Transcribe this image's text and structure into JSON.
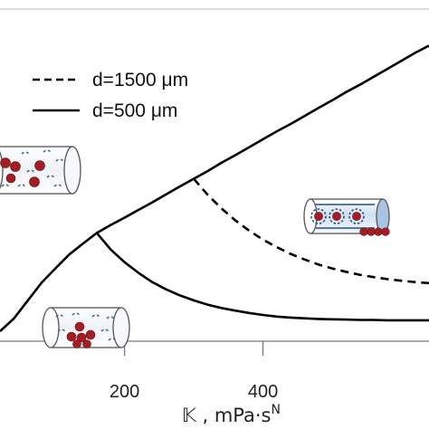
{
  "chart_data": {
    "type": "line",
    "xlabel": "𝕂 , mPa·s",
    "xlabel_superscript": "N",
    "x_ticks": [
      200,
      400
    ],
    "xlim": [
      20,
      640
    ],
    "ylim": [
      0,
      1
    ],
    "grid": false,
    "legend": {
      "placement": "top-left",
      "entries": [
        {
          "label": "d=1500 μm",
          "style": "dashed"
        },
        {
          "label": "d=500 μm",
          "style": "solid"
        }
      ]
    },
    "series": [
      {
        "name": "d=500 μm",
        "style": "solid",
        "segment": "upper-branch",
        "x": [
          20,
          40,
          60,
          80,
          100,
          120,
          140,
          160,
          180,
          200,
          220,
          240,
          260,
          280,
          300,
          320,
          340,
          360,
          380,
          400,
          420,
          440,
          460,
          480,
          500,
          520,
          540,
          560,
          580,
          600,
          620,
          640
        ],
        "y": [
          0.03,
          0.068,
          0.122,
          0.176,
          0.219,
          0.261,
          0.294,
          0.326,
          0.35,
          0.372,
          0.395,
          0.418,
          0.442,
          0.466,
          0.489,
          0.512,
          0.537,
          0.56,
          0.584,
          0.608,
          0.632,
          0.654,
          0.678,
          0.702,
          0.725,
          0.75,
          0.772,
          0.796,
          0.82,
          0.844,
          0.868,
          0.89
        ]
      },
      {
        "name": "d=500 μm",
        "style": "solid",
        "segment": "lower-branch",
        "x": [
          160,
          180,
          200,
          220,
          240,
          260,
          280,
          300,
          320,
          340,
          360,
          380,
          400,
          420,
          440,
          460,
          480,
          500,
          520,
          540,
          560,
          580,
          600,
          620,
          640
        ],
        "y": [
          0.326,
          0.276,
          0.238,
          0.206,
          0.178,
          0.156,
          0.138,
          0.123,
          0.11,
          0.1,
          0.092,
          0.085,
          0.079,
          0.074,
          0.071,
          0.069,
          0.067,
          0.066,
          0.065,
          0.064,
          0.064,
          0.063,
          0.063,
          0.063,
          0.063
        ]
      },
      {
        "name": "d=1500 μm",
        "style": "dashed",
        "segment": "lower-branch",
        "x": [
          300,
          320,
          340,
          360,
          380,
          400,
          420,
          440,
          460,
          480,
          500,
          520,
          540,
          560,
          580,
          600,
          620,
          640
        ],
        "y": [
          0.489,
          0.441,
          0.4,
          0.364,
          0.333,
          0.306,
          0.283,
          0.263,
          0.246,
          0.231,
          0.219,
          0.209,
          0.2,
          0.193,
          0.187,
          0.182,
          0.178,
          0.175
        ]
      }
    ]
  }
}
